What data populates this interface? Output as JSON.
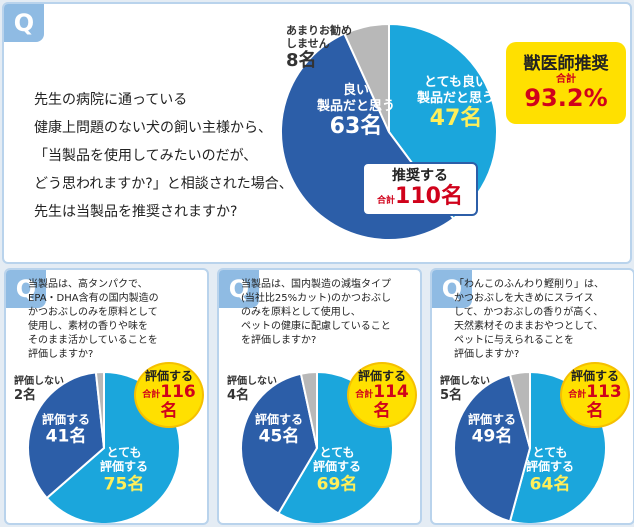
{
  "chart_data": [
    {
      "type": "pie",
      "q_label": "Q",
      "question": "先生の病院に通っている\n健康上問題のない犬の飼い主様から、\n「当製品を使用してみたいのだが、\nどう思われますか?」と相談された場合、\n先生は当製品を推奨されますか?",
      "categories": [
        "とても良い\n製品だと思う",
        "良い\n製品だと思う",
        "あまりお勧め\nしません"
      ],
      "values": [
        47,
        63,
        8
      ],
      "value_labels": [
        "47名",
        "63名",
        "8名"
      ],
      "colors": [
        "#1ba6dc",
        "#2c5ea8",
        "#b8b8b8"
      ],
      "total_label": "推奨する",
      "total_caption": "合計",
      "total": "110名",
      "badge": {
        "title": "獣医師推奨",
        "caption": "合計",
        "value": "93.2%"
      }
    },
    {
      "type": "pie",
      "q_label": "Q",
      "question": "当製品は、高タンパクで、\nEPA・DHA含有の国内製造の\nかつおぶしのみを原料として\n使用し、素材の香りや味を\nそのまま活かしていることを\n評価しますか?",
      "categories": [
        "とても\n評価する",
        "評価する",
        "評価しない"
      ],
      "values": [
        75,
        41,
        2
      ],
      "value_labels": [
        "75名",
        "41名",
        "2名"
      ],
      "colors": [
        "#1ba6dc",
        "#2c5ea8",
        "#b8b8b8"
      ],
      "total_label": "評価する",
      "total_caption": "合計",
      "total": "116名"
    },
    {
      "type": "pie",
      "q_label": "Q",
      "question": "当製品は、国内製造の減塩タイプ\n(当社比25%カット)のかつおぶし\nのみを原料として使用し、\nペットの健康に配慮していること\nを評価しますか?",
      "categories": [
        "とても\n評価する",
        "評価する",
        "評価しない"
      ],
      "values": [
        69,
        45,
        4
      ],
      "value_labels": [
        "69名",
        "45名",
        "4名"
      ],
      "colors": [
        "#1ba6dc",
        "#2c5ea8",
        "#b8b8b8"
      ],
      "total_label": "評価する",
      "total_caption": "合計",
      "total": "114名"
    },
    {
      "type": "pie",
      "q_label": "Q",
      "question": "「わんこのふんわり鰹削り」は、\nかつおぶしを大きめにスライス\nして、かつおぶしの香りが高く、\n天然素材そのままおやつとして、\nペットに与えられることを\n評価しますか?",
      "categories": [
        "とても\n評価する",
        "評価する",
        "評価しない"
      ],
      "values": [
        64,
        49,
        5
      ],
      "value_labels": [
        "64名",
        "49名",
        "5名"
      ],
      "colors": [
        "#1ba6dc",
        "#2c5ea8",
        "#b8b8b8"
      ],
      "total_label": "評価する",
      "total_caption": "合計",
      "total": "113名"
    }
  ]
}
